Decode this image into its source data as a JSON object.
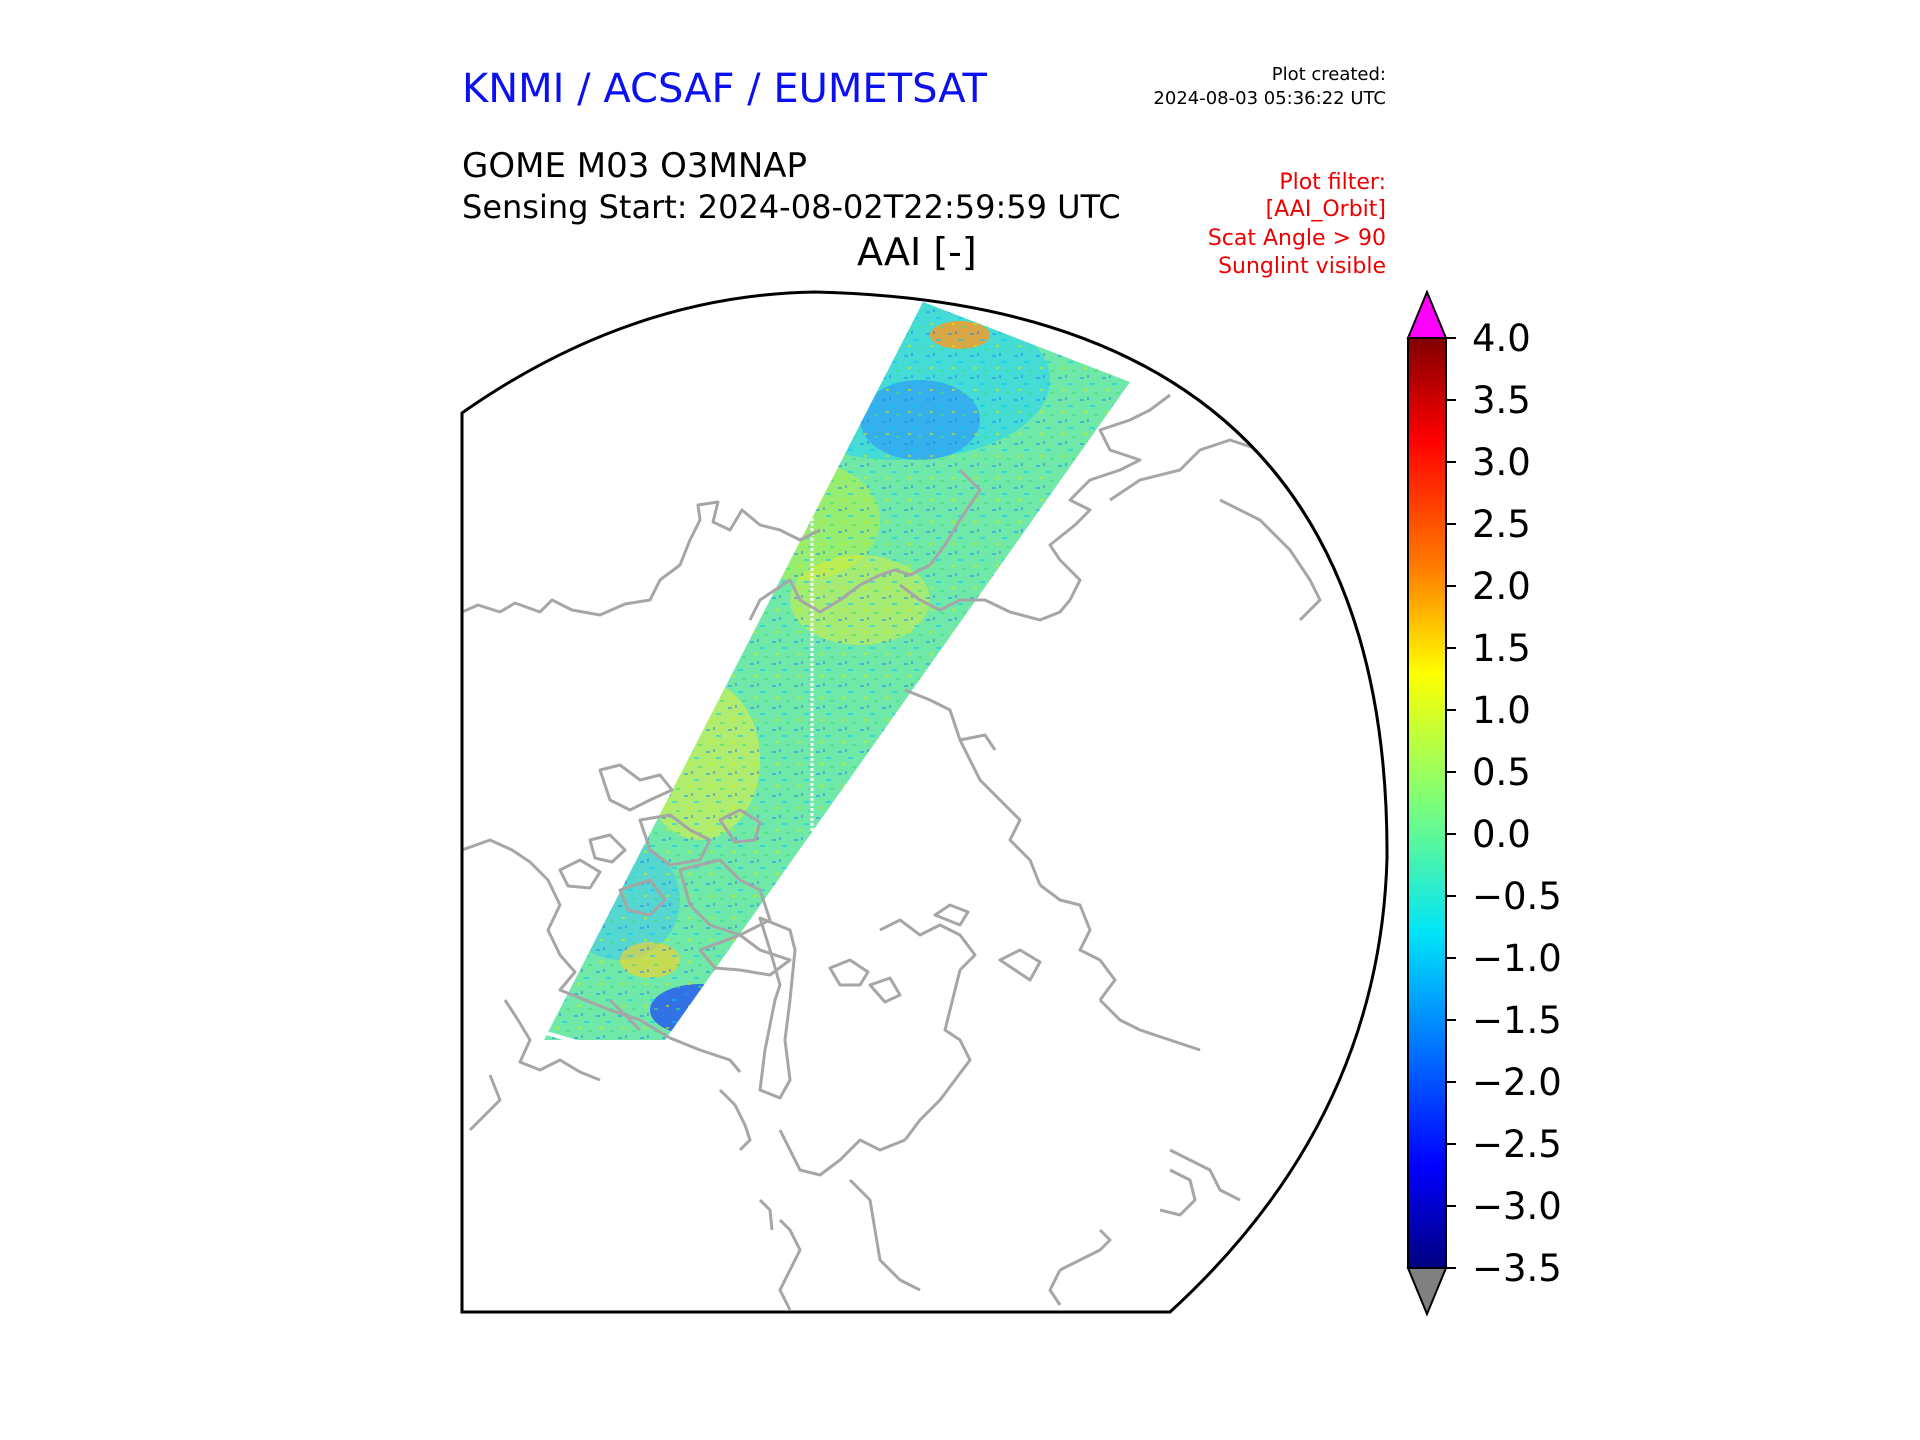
{
  "header": {
    "organization": "KNMI / ACSAF / EUMETSAT",
    "plot_created_label": "Plot created:",
    "plot_created_time": "2024-08-03 05:36:22 UTC"
  },
  "product": {
    "name": "GOME M03 O3MNAP",
    "sensing_start": "Sensing Start: 2024-08-02T22:59:59 UTC",
    "variable": "AAI [-]"
  },
  "filters": [
    "Plot filter:",
    "[AAI_Orbit]",
    "Scat Angle > 90",
    "Sunglint visible"
  ],
  "colorbar": {
    "min": -3.5,
    "max": 4.0,
    "ticks": [
      "4.0",
      "3.5",
      "3.0",
      "2.5",
      "2.0",
      "1.5",
      "1.0",
      "0.5",
      "0.0",
      "−0.5",
      "−1.0",
      "−1.5",
      "−2.0",
      "−2.5",
      "−3.0",
      "−3.5"
    ],
    "over_color": "#ff00ff",
    "under_color": "#808080"
  },
  "map": {
    "coastline_color": "#a6a6a6",
    "border_color": "#000000"
  }
}
